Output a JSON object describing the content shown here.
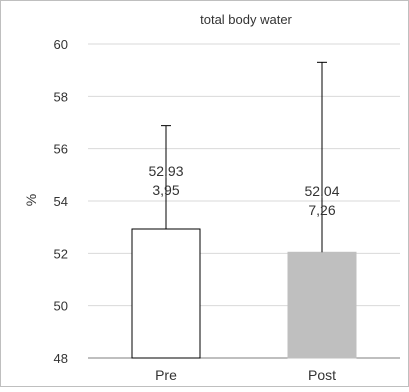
{
  "chart_data": {
    "type": "bar",
    "title": "total body water",
    "xlabel": "",
    "ylabel": "%",
    "categories": [
      "Pre",
      "Post"
    ],
    "values": [
      52.93,
      52.04
    ],
    "errors": [
      3.95,
      7.26
    ],
    "value_labels": [
      "52,93",
      "52,04"
    ],
    "error_labels": [
      "3,95",
      "7,26"
    ],
    "ylim": [
      48,
      60
    ],
    "yticks": [
      48,
      50,
      52,
      54,
      56,
      58,
      60
    ],
    "grid": true,
    "legend": "none",
    "bar_fill": [
      "#ffffff",
      "#bfbfbf"
    ],
    "bar_stroke": [
      "#000000",
      "#bfbfbf"
    ]
  }
}
